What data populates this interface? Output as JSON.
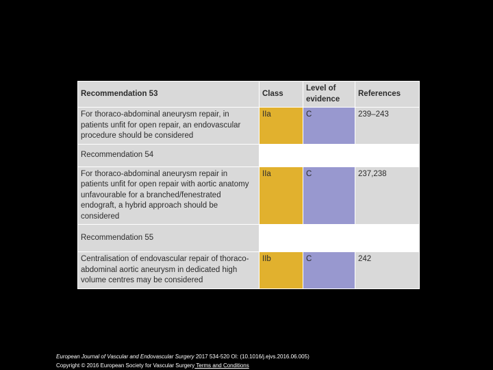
{
  "table": {
    "headers": [
      "Recommendation 53",
      "Class",
      "Level of evidence",
      "References"
    ],
    "rows": [
      {
        "text": "For thoraco-abdominal aneurysm repair, in patients unfit for open repair, an endovascular procedure should be considered",
        "class": "IIa",
        "level": "C",
        "refs": "239–243"
      },
      {
        "section": "Recommendation 54"
      },
      {
        "text": "For thoraco-abdominal aneurysm repair in patients unfit for open repair with aortic anatomy unfavourable for a branched/fenestrated endograft, a hybrid approach should be considered",
        "class": "IIa",
        "level": "C",
        "refs": "237,238"
      },
      {
        "section": "Recommendation 55"
      },
      {
        "text": "Centralisation of endovascular repair of thoraco-abdominal aortic aneurysm in dedicated high volume centres may be considered",
        "class": "IIb",
        "level": "C",
        "refs": "242"
      }
    ]
  },
  "footer": {
    "journal": "European Journal of Vascular and Endovascular Surgery",
    "citation": " 2017 534-520 OI: (10.1016/j.ejvs.2016.06.005)",
    "copyright": "Copyright © 2016 European Society for Vascular Surgery",
    "link": " Terms and Conditions"
  }
}
